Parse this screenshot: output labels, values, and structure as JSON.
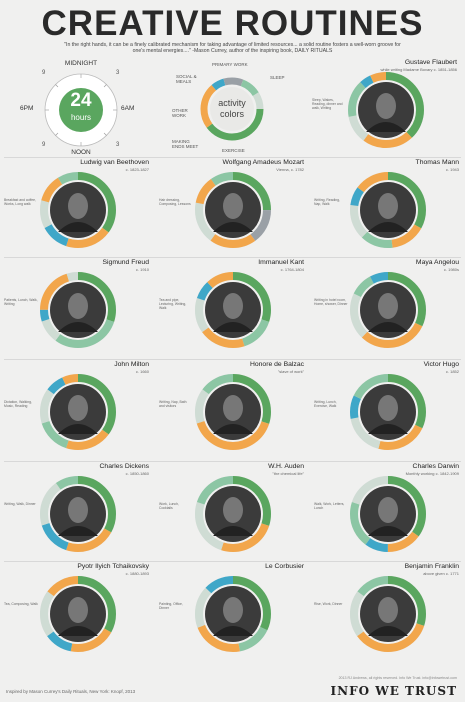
{
  "header": {
    "title": "CREATIVE ROUTINES",
    "quote": "\"In the right hands, it can be a finely calibrated mechanism for taking advantage of limited resources... a solid routine fosters a well-worn groove for one's mental energies....\" -Mason Currey, author of the inspiring book, DAILY RITUALS"
  },
  "clock": {
    "center_big": "24",
    "center_small": "hours",
    "labels": {
      "top": "MIDNIGHT",
      "left": "6PM",
      "right": "6AM",
      "bottom": "NOON"
    },
    "small_numbers": [
      "9",
      "3",
      "9",
      "3"
    ]
  },
  "legend": {
    "center_line1": "activity",
    "center_line2": "colors",
    "items": [
      "PRIMARY WORK",
      "SLEEP",
      "EXERCISE",
      "MAKING ENDS MEET",
      "OTHER WORK",
      "SOCIAL & MEALS"
    ]
  },
  "colors": {
    "sleep": "#5aa65f",
    "work": "#f2a64b",
    "other": "#8cc6a4",
    "social": "#cfdcd4",
    "exercise": "#3fa7c8",
    "ends": "#9aa0a6",
    "photo": "#3b3b3b"
  },
  "people": [
    {
      "name": "Gustave Flaubert",
      "dates": "while writing Madame Bovary\nc. 1851-1856",
      "note": "Sleep, Wakes, Reading, dinner and walk, Writing"
    },
    {
      "name": "Ludwig van Beethoven",
      "dates": "c. 1823-1827",
      "note": "Breakfast and coffee, Works, Long walk"
    },
    {
      "name": "Wolfgang Amadeus Mozart",
      "dates": "Vienna, c. 1782",
      "note": "Hair dressing, Composing, Lessons"
    },
    {
      "name": "Thomas Mann",
      "dates": "c. 1943",
      "note": "Writing, Reading, Nap, Walk"
    },
    {
      "name": "Sigmund Freud",
      "dates": "c. 1910",
      "note": "Patients, Lunch, Walk, Writing"
    },
    {
      "name": "Immanuel Kant",
      "dates": "c. 1764-1804",
      "note": "Tea and pipe, Lecturing, Writing, Walk"
    },
    {
      "name": "Maya Angelou",
      "dates": "c. 1980s",
      "note": "Writing in hotel room, Home, shower, Dinner"
    },
    {
      "name": "John Milton",
      "dates": "c. 1660",
      "note": "Dictation, Walking, Music, Reading"
    },
    {
      "name": "Honore de Balzac",
      "dates": "\"slave of work\"",
      "note": "Writing, Nap, Bath and visitors"
    },
    {
      "name": "Victor Hugo",
      "dates": "c. 1852",
      "note": "Writing, Lunch, Exercise, Walk"
    },
    {
      "name": "Charles Dickens",
      "dates": "c. 1850-1860",
      "note": "Writing, Walk, Dinner"
    },
    {
      "name": "W.H. Auden",
      "dates": "\"the chemical life\"",
      "note": "Work, Lunch, Cocktails"
    },
    {
      "name": "Charles Darwin",
      "dates": "Monthly working c. 1842-1909",
      "note": "Walk, Work, Letters, Lunch"
    },
    {
      "name": "Pyotr Ilyich Tchaikovsky",
      "dates": "c. 1880-1893",
      "note": "Tea, Composing, Walk"
    },
    {
      "name": "Le Corbusier",
      "dates": "",
      "note": "Painting, Office, Dinner"
    },
    {
      "name": "Benjamin Franklin",
      "dates": "above given c. 1771",
      "note": "Rise, Work, Dinner"
    }
  ],
  "footer": {
    "credit": "Inspired by Mason Currey's Daily Rituals, New York: Knopf, 2013",
    "copyright": "2013 RJ Andrews, all rights reserved. Info We Trust. info@infowetrust.com",
    "brand": "INFO WE TRUST"
  }
}
